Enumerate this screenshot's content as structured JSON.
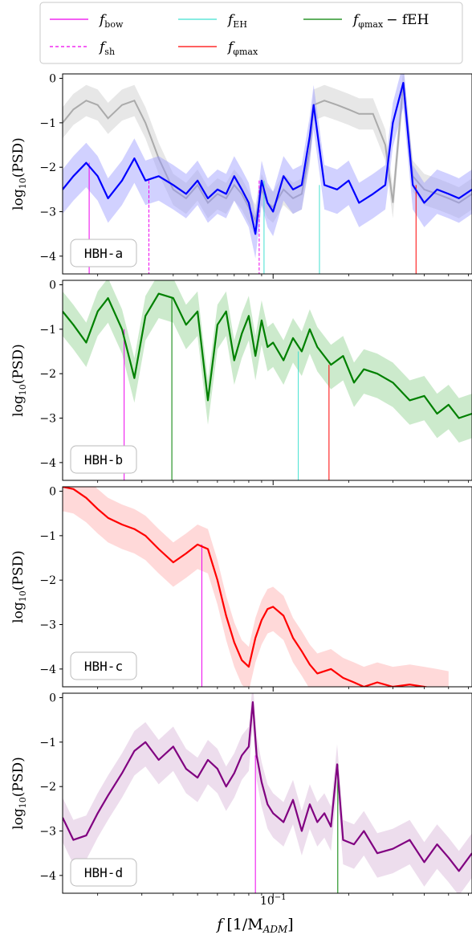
{
  "legend": {
    "entries": [
      {
        "label": "f",
        "sub": "bow",
        "extra": "",
        "color": "#ee00ee",
        "dash": false
      },
      {
        "label": "f",
        "sub": "EH",
        "extra": "",
        "color": "#40e0d0",
        "dash": false
      },
      {
        "label": "f",
        "sub": "φmax",
        "extra": "− fEH",
        "color": "#008000",
        "dash": false
      },
      {
        "label": "f",
        "sub": "sh",
        "extra": "",
        "color": "#ee00ee",
        "dash": true
      },
      {
        "label": "f",
        "sub": "φmax",
        "extra": "",
        "color": "#ff0000",
        "dash": false
      }
    ]
  },
  "axes": {
    "ylabel_main": "log",
    "ylabel_sub": "10",
    "ylabel_tail": "(PSD)",
    "xlabel_main": "f",
    "xlabel_tail": "[1/M",
    "xlabel_sub": "ADM",
    "xlabel_close": "]",
    "xtick_main": "10",
    "xtick_exp": "−1",
    "yticks": [
      "0",
      "−1",
      "−2",
      "−3",
      "−4"
    ]
  },
  "chart_data": [
    {
      "type": "line",
      "panel": "HBH-a",
      "color": "#0000ff",
      "band_color": "#9999ff",
      "xscale": "log",
      "ylim": [
        -4.4,
        0.1
      ],
      "xlim": [
        0.0145,
        0.62
      ],
      "x": [
        0.0145,
        0.016,
        0.018,
        0.02,
        0.022,
        0.025,
        0.028,
        0.031,
        0.035,
        0.04,
        0.045,
        0.05,
        0.055,
        0.06,
        0.065,
        0.07,
        0.075,
        0.08,
        0.085,
        0.09,
        0.095,
        0.1,
        0.11,
        0.12,
        0.13,
        0.14,
        0.145,
        0.16,
        0.18,
        0.2,
        0.22,
        0.25,
        0.28,
        0.3,
        0.33,
        0.36,
        0.4,
        0.45,
        0.5,
        0.55,
        0.62
      ],
      "y": [
        -2.5,
        -2.2,
        -1.9,
        -2.2,
        -2.7,
        -2.3,
        -1.8,
        -2.3,
        -2.2,
        -2.4,
        -2.6,
        -2.3,
        -2.7,
        -2.5,
        -2.6,
        -2.2,
        -2.5,
        -2.8,
        -3.5,
        -2.3,
        -2.8,
        -3.0,
        -2.2,
        -2.5,
        -2.4,
        -1.3,
        -0.6,
        -2.4,
        -2.5,
        -2.3,
        -2.8,
        -2.6,
        -2.4,
        -1.0,
        -0.1,
        -2.4,
        -2.8,
        -2.5,
        -2.6,
        -2.7,
        -2.5
      ],
      "ghost_y": [
        -1.0,
        -0.7,
        -0.5,
        -0.6,
        -0.9,
        -0.6,
        -0.5,
        -1.0,
        -1.8,
        -2.5,
        -2.7,
        -2.4,
        -2.8,
        -2.6,
        -2.7,
        -2.4,
        -2.6,
        -2.9,
        -3.2,
        -2.5,
        -2.8,
        -2.9,
        -2.5,
        -2.7,
        -2.6,
        -1.6,
        -0.6,
        -0.5,
        -0.6,
        -0.7,
        -0.8,
        -0.8,
        -1.5,
        -2.8,
        -0.1,
        -2.2,
        -2.5,
        -2.6,
        -2.7,
        -2.8,
        -2.6
      ],
      "vlines": [
        {
          "x": 0.0185,
          "kind": "bow",
          "color": "#ee00ee",
          "dash": false
        },
        {
          "x": 0.032,
          "kind": "sh",
          "color": "#ee00ee",
          "dash": true
        },
        {
          "x": 0.088,
          "kind": "sh",
          "color": "#ee00ee",
          "dash": true
        },
        {
          "x": 0.092,
          "kind": "EH",
          "color": "#40e0d0",
          "dash": false
        },
        {
          "x": 0.153,
          "kind": "EH",
          "color": "#40e0d0",
          "dash": false
        },
        {
          "x": 0.371,
          "kind": "phimax",
          "color": "#ff0000",
          "dash": false
        }
      ]
    },
    {
      "type": "line",
      "panel": "HBH-b",
      "color": "#008000",
      "band_color": "#8fd18f",
      "xscale": "log",
      "ylim": [
        -4.4,
        0.1
      ],
      "xlim": [
        0.0145,
        0.62
      ],
      "x": [
        0.0145,
        0.016,
        0.018,
        0.02,
        0.022,
        0.025,
        0.028,
        0.031,
        0.035,
        0.04,
        0.045,
        0.05,
        0.055,
        0.06,
        0.065,
        0.07,
        0.075,
        0.08,
        0.085,
        0.09,
        0.095,
        0.1,
        0.11,
        0.12,
        0.13,
        0.14,
        0.15,
        0.17,
        0.19,
        0.21,
        0.23,
        0.26,
        0.3,
        0.35,
        0.4,
        0.45,
        0.5,
        0.55,
        0.62
      ],
      "y": [
        -0.6,
        -0.9,
        -1.3,
        -0.6,
        -0.3,
        -1.0,
        -2.1,
        -0.7,
        -0.2,
        -0.3,
        -0.9,
        -0.6,
        -2.6,
        -0.9,
        -0.6,
        -1.7,
        -1.1,
        -0.7,
        -1.6,
        -0.8,
        -1.4,
        -1.3,
        -1.7,
        -1.2,
        -1.5,
        -1.0,
        -1.4,
        -1.8,
        -1.6,
        -2.2,
        -1.9,
        -2.0,
        -2.2,
        -2.6,
        -2.5,
        -2.9,
        -2.7,
        -3.0,
        -2.9
      ],
      "vlines": [
        {
          "x": 0.0255,
          "kind": "bow",
          "color": "#ee00ee",
          "dash": false
        },
        {
          "x": 0.0395,
          "kind": "phimax-EH",
          "color": "#008000",
          "dash": false
        },
        {
          "x": 0.126,
          "kind": "EH",
          "color": "#40e0d0",
          "dash": false
        },
        {
          "x": 0.167,
          "kind": "phimax",
          "color": "#ff0000",
          "dash": false
        }
      ]
    },
    {
      "type": "line",
      "panel": "HBH-c",
      "color": "#ff0000",
      "band_color": "#ffaaaa",
      "xscale": "log",
      "ylim": [
        -4.4,
        0.1
      ],
      "xlim": [
        0.0145,
        0.62
      ],
      "x": [
        0.0145,
        0.016,
        0.018,
        0.02,
        0.022,
        0.025,
        0.028,
        0.031,
        0.035,
        0.04,
        0.045,
        0.05,
        0.055,
        0.06,
        0.065,
        0.07,
        0.075,
        0.08,
        0.085,
        0.09,
        0.095,
        0.1,
        0.11,
        0.12,
        0.13,
        0.14,
        0.15,
        0.17,
        0.19,
        0.21,
        0.23,
        0.26,
        0.3,
        0.35,
        0.4,
        0.45,
        0.5
      ],
      "y": [
        0.1,
        0.05,
        -0.15,
        -0.4,
        -0.6,
        -0.75,
        -0.85,
        -1.0,
        -1.3,
        -1.6,
        -1.4,
        -1.2,
        -1.3,
        -2.0,
        -2.8,
        -3.4,
        -3.8,
        -3.95,
        -3.3,
        -2.9,
        -2.65,
        -2.6,
        -2.8,
        -3.3,
        -3.6,
        -3.9,
        -4.1,
        -4.0,
        -4.2,
        -4.3,
        -4.4,
        -4.3,
        -4.4,
        -4.35,
        -4.4,
        -4.45,
        -4.5
      ],
      "vlines": [
        {
          "x": 0.052,
          "kind": "bow",
          "color": "#ee00ee",
          "dash": false
        }
      ]
    },
    {
      "type": "line",
      "panel": "HBH-d",
      "color": "#800080",
      "band_color": "#d8b3d8",
      "xscale": "log",
      "ylim": [
        -4.4,
        0.1
      ],
      "xlim": [
        0.0145,
        0.62
      ],
      "x": [
        0.0145,
        0.016,
        0.018,
        0.02,
        0.022,
        0.025,
        0.028,
        0.031,
        0.035,
        0.04,
        0.045,
        0.05,
        0.055,
        0.06,
        0.065,
        0.07,
        0.075,
        0.08,
        0.083,
        0.086,
        0.09,
        0.095,
        0.1,
        0.11,
        0.12,
        0.13,
        0.14,
        0.15,
        0.16,
        0.17,
        0.18,
        0.19,
        0.21,
        0.23,
        0.26,
        0.3,
        0.35,
        0.4,
        0.45,
        0.5,
        0.55,
        0.62
      ],
      "y": [
        -2.7,
        -3.2,
        -3.1,
        -2.6,
        -2.2,
        -1.7,
        -1.2,
        -1.0,
        -1.4,
        -1.1,
        -1.6,
        -1.8,
        -1.4,
        -1.6,
        -2.0,
        -1.7,
        -1.3,
        -1.1,
        -0.1,
        -1.3,
        -1.9,
        -2.4,
        -2.6,
        -2.8,
        -2.3,
        -3.0,
        -2.4,
        -2.8,
        -2.6,
        -2.9,
        -1.5,
        -3.2,
        -3.3,
        -3.0,
        -3.5,
        -3.4,
        -3.2,
        -3.7,
        -3.3,
        -3.6,
        -3.9,
        -3.5
      ],
      "vlines": [
        {
          "x": 0.085,
          "kind": "bow",
          "color": "#ee00ee",
          "dash": false
        },
        {
          "x": 0.181,
          "kind": "phimax-EH",
          "color": "#008000",
          "dash": false
        }
      ]
    }
  ]
}
